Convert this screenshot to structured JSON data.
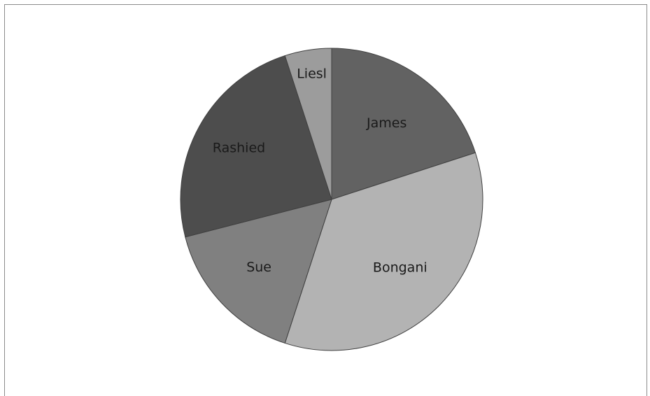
{
  "chart_data": {
    "type": "pie",
    "categories": [
      "James",
      "Bongani",
      "Sue",
      "Rashied",
      "Liesl"
    ],
    "values": [
      20,
      35,
      16,
      24,
      5
    ],
    "colors": [
      "#626262",
      "#b3b3b3",
      "#808080",
      "#4d4d4d",
      "#9c9c9c"
    ],
    "legend": "none",
    "start_angle_deg": 0,
    "direction": "clockwise"
  }
}
